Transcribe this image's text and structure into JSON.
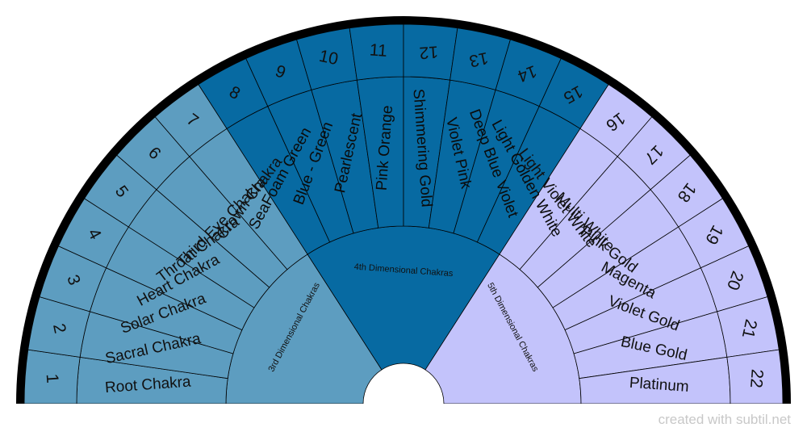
{
  "chart_data": {
    "type": "sunburst",
    "title": "",
    "colors": {
      "group_3d": "#5d9dc0",
      "group_4d": "#076aa2",
      "group_5d": "#c3c3fb",
      "rim": "#000000",
      "line": "#000000"
    },
    "groups": [
      {
        "name": "3rd Dimensional Chakras",
        "color_key": "group_3d",
        "start": 0,
        "count": 7
      },
      {
        "name": "4th Dimensional Chakras",
        "color_key": "group_4d",
        "start": 7,
        "count": 8
      },
      {
        "name": "5th Dimensional Chakras",
        "color_key": "group_5d",
        "start": 15,
        "count": 7
      }
    ],
    "segments": [
      {
        "number": "1",
        "name": "Root Chakra"
      },
      {
        "number": "2",
        "name": "Sacral Chakra"
      },
      {
        "number": "3",
        "name": "Solar Chakra"
      },
      {
        "number": "4",
        "name": "Heart Chakra"
      },
      {
        "number": "5",
        "name": "Throat Chakra"
      },
      {
        "number": "6",
        "name": "Third Eye Chakra"
      },
      {
        "number": "7",
        "name": "Crown Chakra"
      },
      {
        "number": "8",
        "name": "SeaFoam Green"
      },
      {
        "number": "9",
        "name": "Blue - Green"
      },
      {
        "number": "10",
        "name": "Pearlescent"
      },
      {
        "number": "11",
        "name": "Pink Orange"
      },
      {
        "number": "12",
        "name": "Shimmering Gold"
      },
      {
        "number": "13",
        "name": "Violet Pink"
      },
      {
        "number": "14",
        "name": "Deep Blue Violet"
      },
      {
        "number": "15",
        "name": "Light Golden White"
      },
      {
        "number": "16",
        "name": "Light Violet White"
      },
      {
        "number": "17",
        "name": "Multi White"
      },
      {
        "number": "18",
        "name": "Pink Gold"
      },
      {
        "number": "19",
        "name": "Magenta"
      },
      {
        "number": "20",
        "name": "Violet Gold"
      },
      {
        "number": "21",
        "name": "Blue Gold"
      },
      {
        "number": "22",
        "name": "Platinum"
      }
    ]
  },
  "footer": {
    "credit": "created with subtil.net"
  }
}
